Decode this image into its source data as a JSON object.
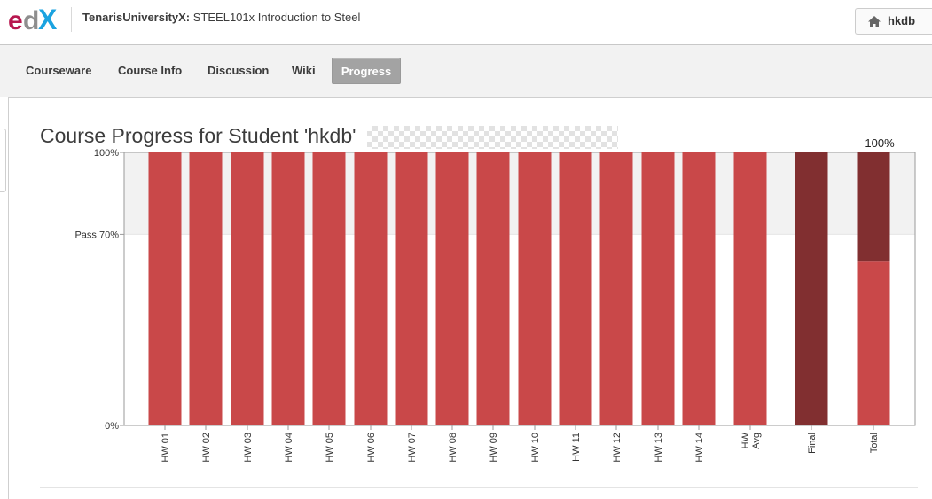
{
  "header": {
    "logo_text": "edX",
    "org": "TenarisUniversityX:",
    "course": "STEEL101x Introduction to Steel",
    "username": "hkdb"
  },
  "nav": {
    "tabs": [
      {
        "label": "Courseware",
        "active": false
      },
      {
        "label": "Course Info",
        "active": false
      },
      {
        "label": "Discussion",
        "active": false
      },
      {
        "label": "Wiki",
        "active": false
      },
      {
        "label": "Progress",
        "active": true
      }
    ]
  },
  "page": {
    "heading": "Course Progress for Student 'hkdb'"
  },
  "chart_data": {
    "type": "bar",
    "categories": [
      "HW 01",
      "HW 02",
      "HW 03",
      "HW 04",
      "HW 05",
      "HW 06",
      "HW 07",
      "HW 08",
      "HW 09",
      "HW 10",
      "HW 11",
      "HW 12",
      "HW 13",
      "HW 14",
      "HW Avg",
      "Final",
      "Total"
    ],
    "values": [
      100,
      100,
      100,
      100,
      100,
      100,
      100,
      100,
      100,
      100,
      100,
      100,
      100,
      100,
      100,
      100,
      100
    ],
    "total_segments": [
      {
        "kind": "HW Avg",
        "value": 60
      },
      {
        "kind": "Final",
        "value": 40
      }
    ],
    "total_label": "100%",
    "pass_line": 70,
    "ylim": [
      0,
      100
    ],
    "yticks": [
      {
        "value": 0,
        "label": "0%"
      },
      {
        "value": 70,
        "label": "Pass 70%"
      },
      {
        "value": 100,
        "label": "100%"
      }
    ],
    "colors": {
      "hw": "#c94849",
      "final": "#812f30",
      "pass_band": "#f2f2f2"
    }
  }
}
